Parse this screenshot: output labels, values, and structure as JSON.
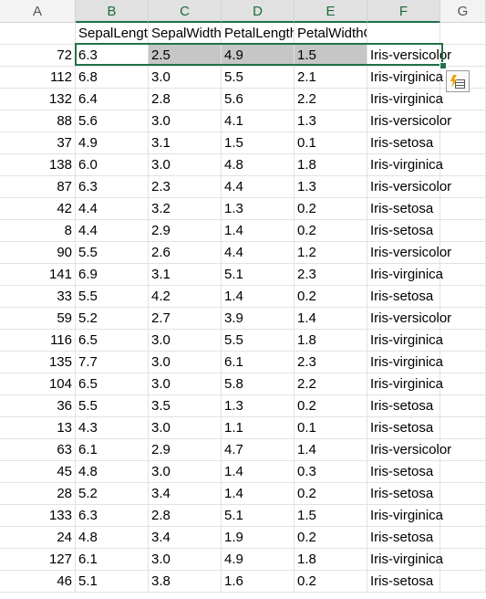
{
  "columns": [
    "A",
    "B",
    "C",
    "D",
    "E",
    "F",
    "G"
  ],
  "header_row": [
    "",
    "SepalLength",
    "SepalWidth",
    "PetalLength",
    "PetalWidthCm",
    "",
    ""
  ],
  "rows": [
    [
      "72",
      "6.3",
      "2.5",
      "4.9",
      "1.5",
      "Iris-versicolor"
    ],
    [
      "112",
      "6.8",
      "3.0",
      "5.5",
      "2.1",
      "Iris-virginica"
    ],
    [
      "132",
      "6.4",
      "2.8",
      "5.6",
      "2.2",
      "Iris-virginica"
    ],
    [
      "88",
      "5.6",
      "3.0",
      "4.1",
      "1.3",
      "Iris-versicolor"
    ],
    [
      "37",
      "4.9",
      "3.1",
      "1.5",
      "0.1",
      "Iris-setosa"
    ],
    [
      "138",
      "6.0",
      "3.0",
      "4.8",
      "1.8",
      "Iris-virginica"
    ],
    [
      "87",
      "6.3",
      "2.3",
      "4.4",
      "1.3",
      "Iris-versicolor"
    ],
    [
      "42",
      "4.4",
      "3.2",
      "1.3",
      "0.2",
      "Iris-setosa"
    ],
    [
      "8",
      "4.4",
      "2.9",
      "1.4",
      "0.2",
      "Iris-setosa"
    ],
    [
      "90",
      "5.5",
      "2.6",
      "4.4",
      "1.2",
      "Iris-versicolor"
    ],
    [
      "141",
      "6.9",
      "3.1",
      "5.1",
      "2.3",
      "Iris-virginica"
    ],
    [
      "33",
      "5.5",
      "4.2",
      "1.4",
      "0.2",
      "Iris-setosa"
    ],
    [
      "59",
      "5.2",
      "2.7",
      "3.9",
      "1.4",
      "Iris-versicolor"
    ],
    [
      "116",
      "6.5",
      "3.0",
      "5.5",
      "1.8",
      "Iris-virginica"
    ],
    [
      "135",
      "7.7",
      "3.0",
      "6.1",
      "2.3",
      "Iris-virginica"
    ],
    [
      "104",
      "6.5",
      "3.0",
      "5.8",
      "2.2",
      "Iris-virginica"
    ],
    [
      "36",
      "5.5",
      "3.5",
      "1.3",
      "0.2",
      "Iris-setosa"
    ],
    [
      "13",
      "4.3",
      "3.0",
      "1.1",
      "0.1",
      "Iris-setosa"
    ],
    [
      "63",
      "6.1",
      "2.9",
      "4.7",
      "1.4",
      "Iris-versicolor"
    ],
    [
      "45",
      "4.8",
      "3.0",
      "1.4",
      "0.3",
      "Iris-setosa"
    ],
    [
      "28",
      "5.2",
      "3.4",
      "1.4",
      "0.2",
      "Iris-setosa"
    ],
    [
      "133",
      "6.3",
      "2.8",
      "5.1",
      "1.5",
      "Iris-virginica"
    ],
    [
      "24",
      "4.8",
      "3.4",
      "1.9",
      "0.2",
      "Iris-setosa"
    ],
    [
      "127",
      "6.1",
      "3.0",
      "4.9",
      "1.8",
      "Iris-virginica"
    ],
    [
      "46",
      "5.1",
      "3.8",
      "1.6",
      "0.2",
      "Iris-setosa"
    ]
  ],
  "selection": {
    "row_index": 0,
    "selected_columns": [
      "B",
      "C",
      "D",
      "E",
      "F"
    ],
    "highlighted_columns": [
      "C",
      "D",
      "E"
    ]
  },
  "colors": {
    "accent": "#217346",
    "selection_fill": "#c6c6c6"
  },
  "icons": {
    "quick_analysis": "quick-analysis-icon"
  }
}
